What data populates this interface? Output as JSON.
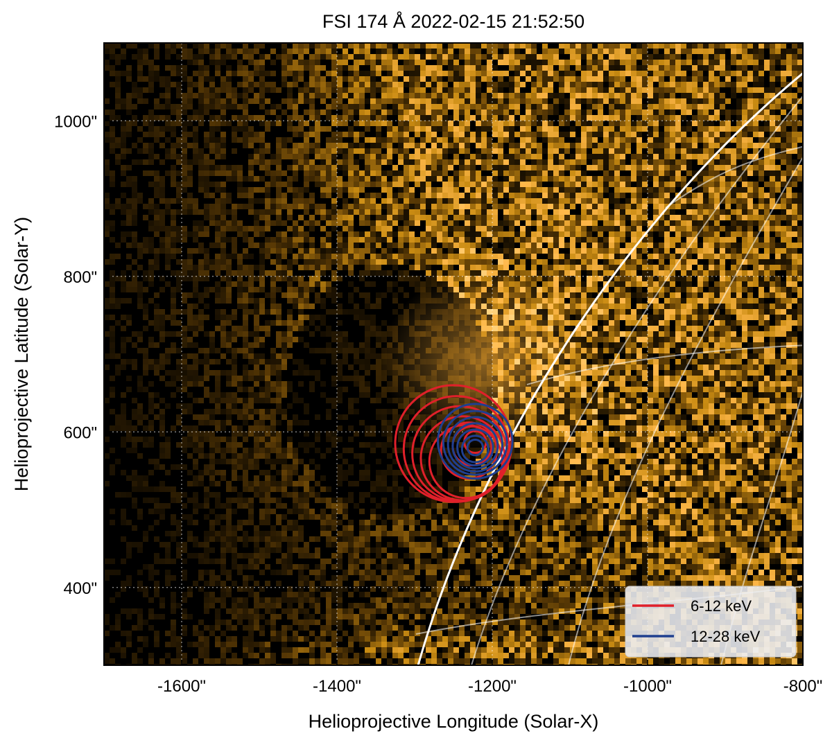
{
  "chart_data": {
    "type": "heatmap",
    "title": "FSI 174 Å 2022-02-15 21:52:50",
    "xlabel": "Helioprojective Longitude (Solar-X)",
    "ylabel": "Helioprojective Latitude (Solar-Y)",
    "xlim": [
      -1700,
      -800
    ],
    "ylim": [
      300,
      1100
    ],
    "x_ticks": [
      -1600,
      -1400,
      -1200,
      -1000,
      -800
    ],
    "y_ticks": [
      400,
      600,
      800,
      1000
    ],
    "x_tick_labels": [
      "-1600\"",
      "-1400\"",
      "-1200\"",
      "-1000\"",
      "-800\""
    ],
    "y_tick_labels": [
      "400\"",
      "600\"",
      "800\"",
      "1000\""
    ],
    "grid": true,
    "colormap": [
      "#000000",
      "#5a3a05",
      "#c98b12",
      "#ffb84a",
      "#fff3c0"
    ],
    "series": [
      {
        "name": "6-12 keV",
        "color": "#e0202a",
        "type": "contour",
        "centers": [
          [
            -1250,
            585
          ],
          [
            -1246,
            578
          ],
          [
            -1242,
            572
          ],
          [
            -1238,
            566
          ],
          [
            -1234,
            562
          ],
          [
            -1230,
            576
          ],
          [
            -1226,
            582
          ],
          [
            -1222,
            587
          ]
        ],
        "radii": [
          75,
          68,
          61,
          54,
          47,
          36,
          25,
          14
        ]
      },
      {
        "name": "12-28 keV",
        "color": "#1f3f8f",
        "type": "contour",
        "centers": [
          [
            -1222,
            588
          ],
          [
            -1222,
            586
          ],
          [
            -1222,
            584
          ],
          [
            -1222,
            582
          ],
          [
            -1222,
            580
          ],
          [
            -1222,
            578
          ],
          [
            -1222,
            580
          ]
        ],
        "radii": [
          48,
          41,
          35,
          29,
          23,
          17,
          10
        ]
      }
    ],
    "legend": {
      "position": "lower-right",
      "entries": [
        {
          "label": "6-12 keV",
          "color": "#e0202a"
        },
        {
          "label": "12-28 keV",
          "color": "#1f3f8f"
        }
      ]
    }
  }
}
